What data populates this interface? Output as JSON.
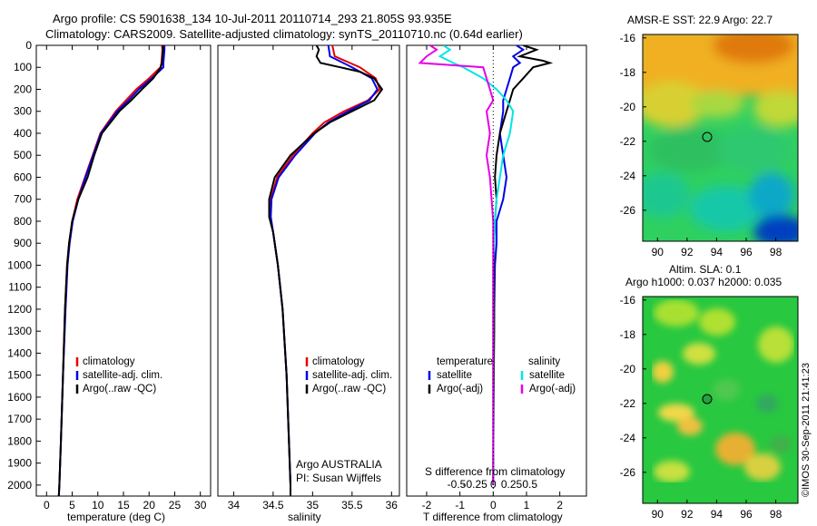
{
  "header": {
    "line1": "Argo profile: CS 5901638_134 10-Jul-2011 20110714_293 21.805S 93.935E",
    "line2": "Climatology: CARS2009. Satellite-adjusted climatology: synTS_20110710.nc (0.64d earlier)"
  },
  "watermark": "©IMOS 30-Sep-2011 21:41:23",
  "colors": {
    "climatology": "#e60000",
    "satellite": "#0000e6",
    "argo": "#000000",
    "sat_salinity": "#00e6e6",
    "argo_salinity": "#e600e6"
  },
  "chart_data": [
    {
      "type": "line",
      "id": "temperature",
      "xlabel": "temperature (deg C)",
      "ylabel": "",
      "xlim": [
        -2,
        32
      ],
      "ylim": [
        2050,
        0
      ],
      "xticks": [
        0,
        5,
        10,
        15,
        20,
        25,
        30
      ],
      "yticks": [
        0,
        100,
        200,
        300,
        400,
        500,
        600,
        700,
        800,
        900,
        1000,
        1100,
        1200,
        1300,
        1400,
        1500,
        1600,
        1700,
        1800,
        1900,
        2000
      ],
      "legend": [
        "climatology",
        "satellite-adj. clim.",
        "Argo(..raw -QC)"
      ],
      "legend_position": "lower-right",
      "series": [
        {
          "name": "climatology",
          "color": "#e60000",
          "depth": [
            0,
            20,
            50,
            80,
            100,
            150,
            200,
            250,
            300,
            400,
            500,
            600,
            700,
            800,
            900,
            1000,
            1200,
            1500,
            1800,
            2000,
            2050
          ],
          "values": [
            22.5,
            22.6,
            22.5,
            22.4,
            22.2,
            20.0,
            17.5,
            15.5,
            13.5,
            10.5,
            9.0,
            7.5,
            6.0,
            5.0,
            4.4,
            4.0,
            3.6,
            3.2,
            2.8,
            2.5,
            2.4
          ]
        },
        {
          "name": "satellite-adj. clim.",
          "color": "#0000e6",
          "depth": [
            0,
            20,
            50,
            80,
            100,
            150,
            200,
            250,
            300,
            400,
            500,
            600,
            700,
            800,
            900,
            1000,
            1200,
            1500,
            1800,
            2000,
            2050
          ],
          "values": [
            23.0,
            23.0,
            22.9,
            22.8,
            22.8,
            20.5,
            18.0,
            16.0,
            13.8,
            10.6,
            9.1,
            7.6,
            6.2,
            5.1,
            4.5,
            4.1,
            3.7,
            3.2,
            2.8,
            2.5,
            2.4
          ]
        },
        {
          "name": "Argo(..raw -QC)",
          "color": "#000000",
          "depth": [
            0,
            20,
            50,
            80,
            100,
            150,
            200,
            250,
            300,
            400,
            500,
            600,
            700,
            800,
            900,
            1000,
            1200,
            1500,
            1800,
            2000,
            2050
          ],
          "values": [
            22.7,
            22.7,
            22.6,
            22.5,
            22.3,
            20.8,
            18.6,
            16.5,
            14.2,
            10.8,
            9.3,
            8.0,
            6.2,
            5.0,
            4.4,
            4.0,
            3.6,
            3.2,
            2.8,
            2.5,
            2.4
          ]
        }
      ]
    },
    {
      "type": "line",
      "id": "salinity",
      "xlabel": "salinity",
      "ylabel": "",
      "xlim": [
        33.8,
        36.1
      ],
      "ylim": [
        2050,
        0
      ],
      "xticks": [
        34,
        34.5,
        35,
        35.5,
        36
      ],
      "legend": [
        "climatology",
        "satellite-adj. clim.",
        "Argo(..raw -QC)"
      ],
      "legend_position": "lower-right",
      "annotation": [
        "Argo AUSTRALIA",
        "PI: Susan Wijffels"
      ],
      "series": [
        {
          "name": "climatology",
          "color": "#e60000",
          "depth": [
            0,
            50,
            100,
            150,
            200,
            250,
            300,
            350,
            400,
            500,
            600,
            700,
            780,
            850,
            1000,
            1200,
            1500,
            1800,
            2000,
            2050
          ],
          "values": [
            35.25,
            35.28,
            35.6,
            35.8,
            35.85,
            35.7,
            35.4,
            35.15,
            35.0,
            34.75,
            34.55,
            34.47,
            34.46,
            34.5,
            34.56,
            34.62,
            34.67,
            34.7,
            34.72,
            34.72
          ]
        },
        {
          "name": "satellite-adj. clim.",
          "color": "#0000e6",
          "depth": [
            0,
            50,
            100,
            150,
            200,
            250,
            300,
            350,
            400,
            500,
            600,
            700,
            780,
            850,
            1000,
            1200,
            1500,
            1800,
            2000,
            2050
          ],
          "values": [
            35.2,
            35.22,
            35.5,
            35.75,
            35.82,
            35.72,
            35.45,
            35.2,
            35.03,
            34.78,
            34.57,
            34.48,
            34.47,
            34.5,
            34.56,
            34.62,
            34.67,
            34.7,
            34.72,
            34.72
          ]
        },
        {
          "name": "Argo(..raw -QC)",
          "color": "#000000",
          "depth": [
            0,
            20,
            50,
            80,
            100,
            120,
            150,
            200,
            250,
            300,
            350,
            400,
            500,
            600,
            700,
            780,
            850,
            1000,
            1200,
            1500,
            1800,
            2000,
            2050
          ],
          "values": [
            35.05,
            35.08,
            35.05,
            35.1,
            35.35,
            35.6,
            35.78,
            35.88,
            35.78,
            35.5,
            35.22,
            35.02,
            34.72,
            34.52,
            34.45,
            34.45,
            34.5,
            34.56,
            34.62,
            34.67,
            34.7,
            34.72,
            34.72
          ]
        }
      ]
    },
    {
      "type": "line",
      "id": "difference",
      "xlabel": "T difference from climatology",
      "xlabel_top": "S difference from climatology",
      "xlim": [
        -2.6,
        2.8
      ],
      "ylim": [
        2050,
        0
      ],
      "xticks": [
        -2,
        -1,
        0,
        1,
        2
      ],
      "xticks_top": [
        "-0.5",
        "-0.25",
        "0",
        "0.25",
        "0.5"
      ],
      "legend_groups": [
        {
          "title": "temperature",
          "entries": [
            "satellite",
            "Argo(-adj)"
          ]
        },
        {
          "title": "salinity",
          "entries": [
            "satellite",
            "Argo(-adj)"
          ]
        }
      ],
      "series": [
        {
          "name": "temperature satellite",
          "color": "#0000e6",
          "depth": [
            0,
            20,
            50,
            80,
            100,
            150,
            200,
            250,
            300,
            400,
            500,
            600,
            700,
            800,
            900,
            1000,
            1300,
            1600,
            2000
          ],
          "values": [
            0.7,
            0.9,
            0.6,
            0.8,
            0.6,
            0.5,
            0.4,
            0.3,
            0.3,
            0.2,
            0.3,
            0.4,
            0.3,
            0.1,
            0.1,
            0.05,
            0.02,
            0.01,
            0.0
          ]
        },
        {
          "name": "temperature Argo(-adj)",
          "color": "#000000",
          "depth": [
            0,
            20,
            50,
            70,
            80,
            100,
            150,
            200,
            250,
            300,
            350,
            400,
            500,
            600,
            700,
            800,
            900,
            1000,
            1300,
            1600,
            2000
          ],
          "values": [
            0.9,
            1.3,
            0.8,
            1.5,
            1.7,
            1.2,
            0.9,
            0.6,
            0.5,
            0.4,
            0.3,
            0.2,
            0.1,
            0.05,
            0.1,
            0.05,
            0.02,
            0.02,
            0.03,
            0.01,
            0.0
          ]
        },
        {
          "name": "salinity satellite",
          "color": "#00e6e6",
          "depth": [
            0,
            20,
            50,
            80,
            100,
            150,
            200,
            250,
            300,
            400,
            500,
            600,
            700,
            800,
            1000,
            1300,
            1600,
            2000
          ],
          "values": [
            -1.5,
            -1.3,
            -1.6,
            -1.2,
            -0.9,
            -0.3,
            0.1,
            0.4,
            0.6,
            0.5,
            0.3,
            0.2,
            0.1,
            0.05,
            0.0,
            0.0,
            0.0,
            0.0
          ]
        },
        {
          "name": "salinity Argo(-adj)",
          "color": "#e600e6",
          "depth": [
            0,
            20,
            50,
            80,
            100,
            150,
            200,
            250,
            300,
            400,
            500,
            600,
            700,
            800,
            1000,
            1300,
            1600,
            2000
          ],
          "values": [
            -1.9,
            -1.7,
            -2.0,
            -2.2,
            -0.3,
            -0.2,
            -0.1,
            0.0,
            -0.2,
            -0.1,
            -0.2,
            -0.1,
            -0.05,
            0.0,
            0.0,
            0.0,
            0.0,
            0.0
          ]
        }
      ]
    },
    {
      "type": "heatmap",
      "id": "sst-map",
      "title": "AMSR-E SST: 22.9 Argo: 22.7",
      "xlim": [
        89,
        99.5
      ],
      "ylim": [
        -27.8,
        -15.8
      ],
      "xticks": [
        90,
        92,
        94,
        96,
        98
      ],
      "yticks": [
        -16,
        -18,
        -20,
        -22,
        -24,
        -26
      ],
      "marker": [
        93.935,
        -21.805
      ]
    },
    {
      "type": "heatmap",
      "id": "sla-map",
      "title_line1": "Altim. SLA: 0.1",
      "title_line2": "Argo h1000: 0.037 h2000: 0.035",
      "xlim": [
        89,
        99.5
      ],
      "ylim": [
        -27.8,
        -15.8
      ],
      "xticks": [
        90,
        92,
        94,
        96,
        98
      ],
      "yticks": [
        -16,
        -18,
        -20,
        -22,
        -24,
        -26
      ],
      "marker": [
        93.935,
        -21.805
      ]
    }
  ]
}
